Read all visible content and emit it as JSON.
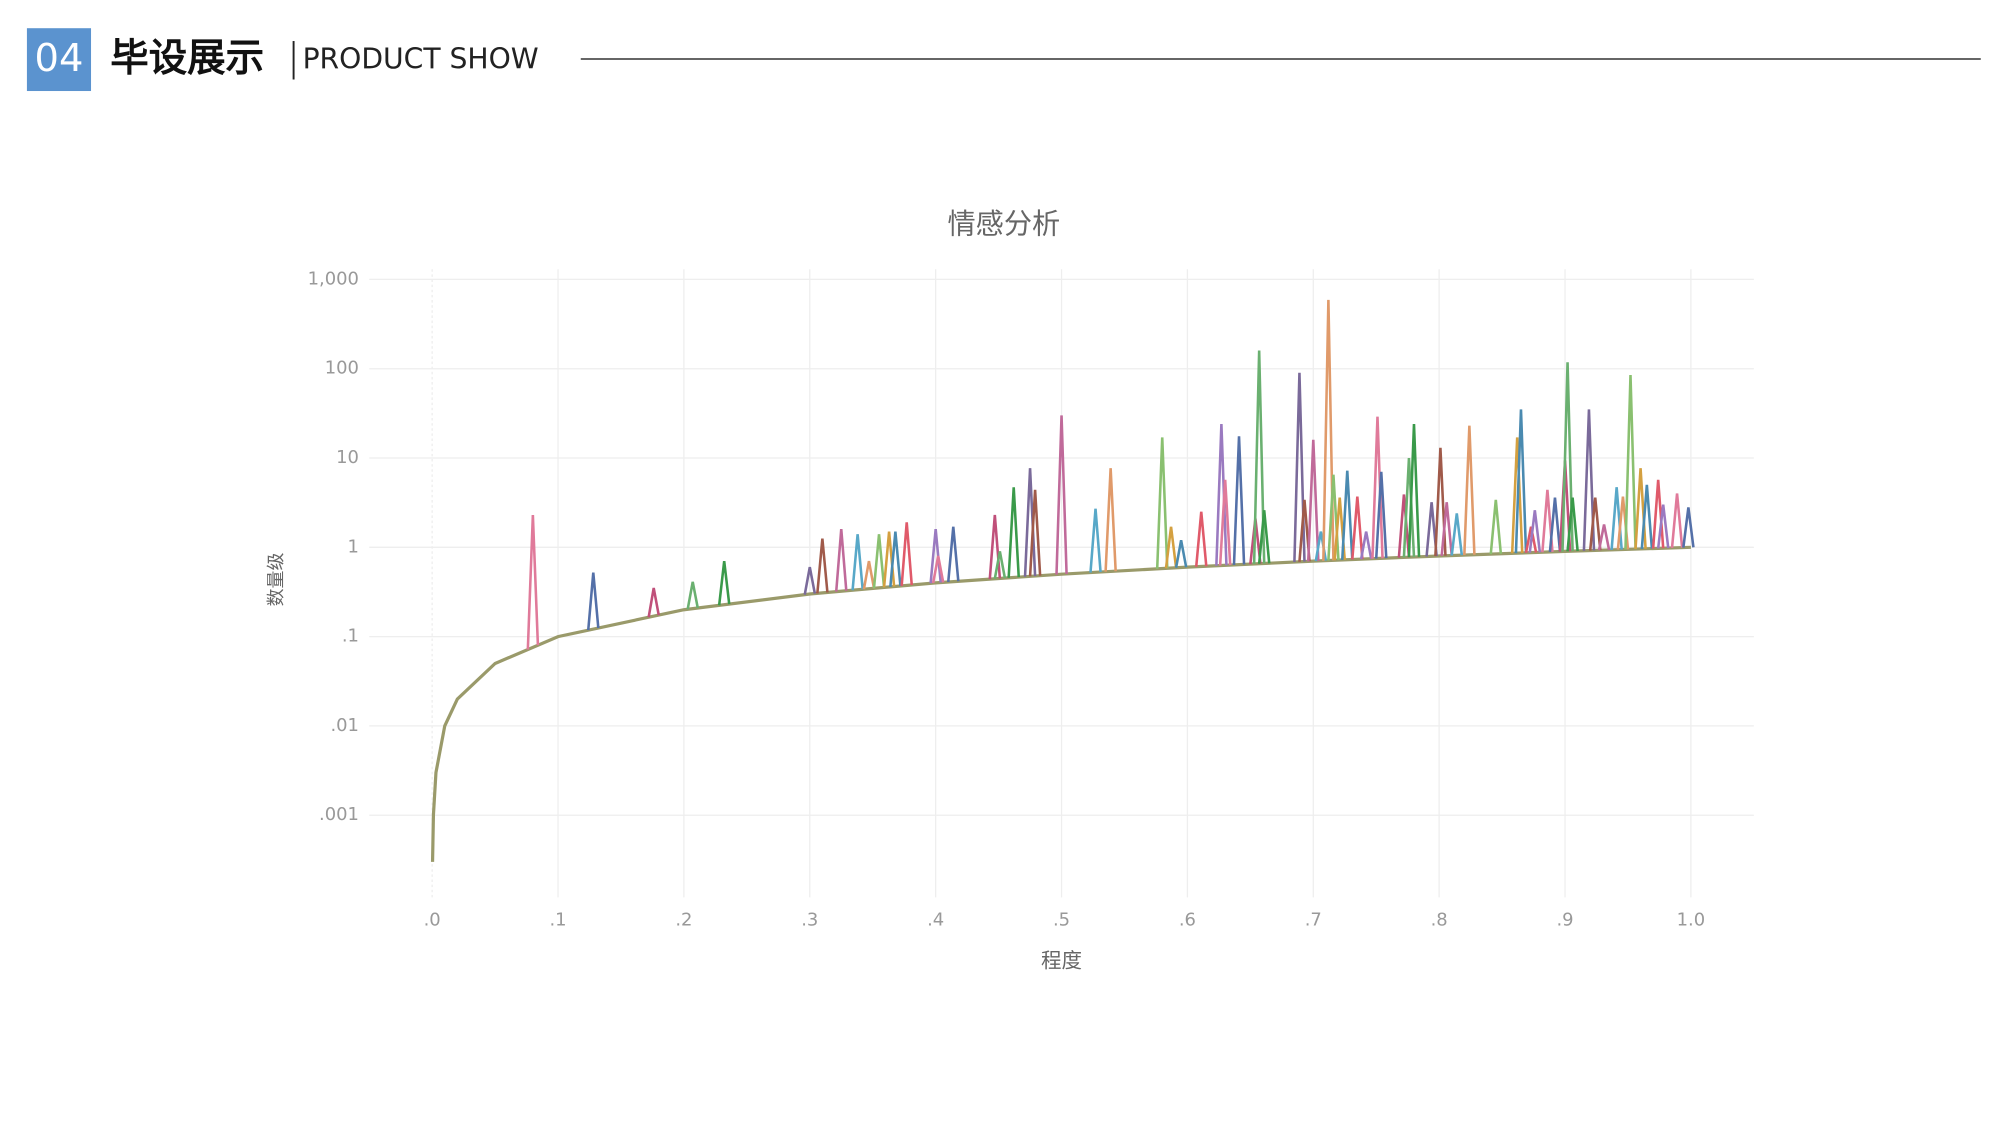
{
  "header": {
    "number": "04",
    "title": "毕设展示",
    "subtitle": "PRODUCT SHOW"
  },
  "chart_data": {
    "type": "line",
    "title": "情感分析",
    "x_label": "程度",
    "y_label": "数量级",
    "log_y": true,
    "grid": true,
    "xlim": [
      -0.05,
      1.05
    ],
    "ylim": [
      0.00012,
      1300
    ],
    "xticks": [
      {
        "value": 0,
        "label": ".0"
      },
      {
        "value": 0.1,
        "label": ".1"
      },
      {
        "value": 0.2,
        "label": ".2"
      },
      {
        "value": 0.3,
        "label": ".3"
      },
      {
        "value": 0.4,
        "label": ".4"
      },
      {
        "value": 0.5,
        "label": ".5"
      },
      {
        "value": 0.6,
        "label": ".6"
      },
      {
        "value": 0.7,
        "label": ".7"
      },
      {
        "value": 0.8,
        "label": ".8"
      },
      {
        "value": 0.9,
        "label": ".9"
      },
      {
        "value": 1,
        "label": "1.0"
      }
    ],
    "yticks": [
      {
        "value": 0.001,
        "label": ".001"
      },
      {
        "value": 0.01,
        "label": ".01"
      },
      {
        "value": 0.1,
        "label": ".1"
      },
      1,
      10,
      100,
      {
        "value": 1000,
        "label": "1,000"
      }
    ],
    "x": [
      0.0003,
      0.001,
      0.003,
      0.01,
      0.02,
      0.05,
      0.1,
      0.2,
      0.3,
      0.4,
      0.5,
      0.6,
      0.7,
      0.8,
      0.9,
      1.0
    ],
    "values": [
      0.0003,
      0.001,
      0.003,
      0.01,
      0.02,
      0.05,
      0.1,
      0.2,
      0.3,
      0.4,
      0.5,
      0.6,
      0.7,
      0.8,
      0.9,
      1.0
    ],
    "color": "#9a9a6a",
    "spikes": {
      "x": [
        0.08,
        0.128,
        0.176,
        0.207,
        0.232,
        0.3,
        0.31,
        0.325,
        0.338,
        0.347,
        0.355,
        0.363,
        0.368,
        0.377,
        0.4,
        0.402,
        0.414,
        0.447,
        0.451,
        0.462,
        0.475,
        0.479,
        0.5,
        0.527,
        0.539,
        0.58,
        0.587,
        0.595,
        0.611,
        0.627,
        0.63,
        0.641,
        0.654,
        0.657,
        0.661,
        0.689,
        0.693,
        0.7,
        0.706,
        0.712,
        0.716,
        0.721,
        0.727,
        0.735,
        0.742,
        0.751,
        0.754,
        0.772,
        0.776,
        0.78,
        0.794,
        0.801,
        0.806,
        0.814,
        0.824,
        0.845,
        0.862,
        0.865,
        0.873,
        0.876,
        0.886,
        0.892,
        0.9,
        0.902,
        0.906,
        0.919,
        0.924,
        0.931,
        0.941,
        0.946,
        0.952,
        0.96,
        0.965,
        0.974,
        0.978,
        0.989,
        0.998
      ],
      "values": [
        2.3,
        0.52,
        0.35,
        0.41,
        0.7,
        0.6,
        1.25,
        1.6,
        1.4,
        0.7,
        1.4,
        1.5,
        1.5,
        1.9,
        1.6,
        0.8,
        1.7,
        2.3,
        0.9,
        4.7,
        7.7,
        4.4,
        30,
        2.7,
        7.7,
        17,
        1.7,
        1.2,
        2.5,
        24,
        5.7,
        17.5,
        2.1,
        160,
        2.6,
        90,
        3.4,
        16,
        1.5,
        590,
        6.5,
        3.6,
        7.2,
        3.7,
        1.5,
        29,
        7,
        3.9,
        10,
        24,
        3.2,
        13,
        3.2,
        2.4,
        23,
        3.4,
        17,
        35,
        1.7,
        2.6,
        4.4,
        3.6,
        9.4,
        118,
        3.6,
        35,
        3.6,
        1.8,
        4.7,
        3.7,
        85,
        7.7,
        5,
        5.7,
        3,
        4,
        2.8
      ],
      "palette": [
        "#e07a9a",
        "#5470a8",
        "#c0507a",
        "#6ab070",
        "#3a9a4a",
        "#7a6a9a",
        "#a05a4a",
        "#c06a9a",
        "#58a8c8",
        "#e09a6a",
        "#8ac070",
        "#d4a040",
        "#4a8ab0",
        "#e05a6a",
        "#9a7ac0"
      ]
    }
  }
}
